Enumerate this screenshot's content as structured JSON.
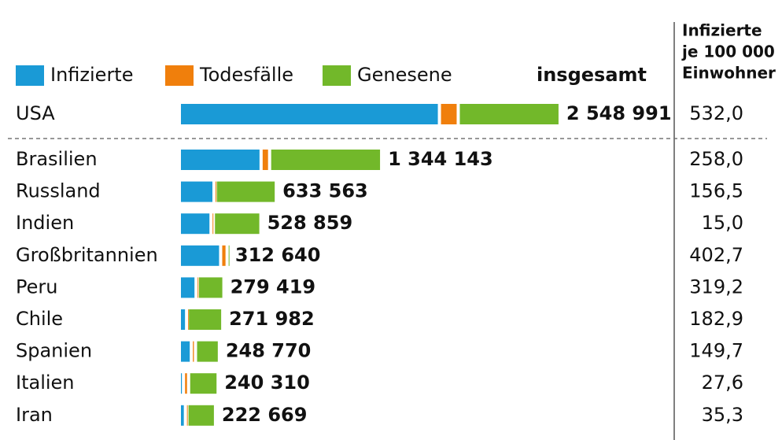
{
  "chart_data": {
    "type": "stacked-bar-horizontal",
    "categories": [
      "USA",
      "Brasilien",
      "Russland",
      "Indien",
      "Großbritannien",
      "Peru",
      "Chile",
      "Spanien",
      "Italien",
      "Iran"
    ],
    "series": [
      {
        "name": "Infizierte",
        "color": "#1a9ad6",
        "values": [
          1745000,
          541000,
          223000,
          203000,
          268000,
          102000,
          38000,
          70000,
          17000,
          30000
        ]
      },
      {
        "name": "Todesfälle",
        "color": "#f07f0c",
        "values": [
          127000,
          57600,
          9000,
          16000,
          43500,
          9300,
          5500,
          28300,
          34700,
          10500
        ]
      },
      {
        "name": "Genesene",
        "color": "#72b82a",
        "values": [
          677000,
          745500,
          401000,
          310000,
          1200,
          168000,
          228000,
          150470,
          188600,
          182000
        ]
      }
    ],
    "total_header": "insgesamt",
    "totals": [
      2548991,
      1344143,
      633563,
      528859,
      312640,
      279419,
      271982,
      248770,
      240310,
      222669
    ],
    "total_labels": [
      "2 548 991",
      "1 344 143",
      "633 563",
      "528 859",
      "312 640",
      "279 419",
      "271 982",
      "248 770",
      "240 310",
      "222 669"
    ],
    "rate_header": [
      "Infizierte",
      "je 100 000",
      "Einwohner"
    ],
    "rates": [
      532.0,
      258.0,
      156.5,
      15.0,
      402.7,
      319.2,
      182.9,
      149.7,
      27.6,
      35.3
    ],
    "rate_labels": [
      "532,0",
      "258,0",
      "156,5",
      "15,0",
      "402,7",
      "319,2",
      "182,9",
      "149,7",
      "27,6",
      "35,3"
    ],
    "xlim": [
      0,
      2560000
    ]
  }
}
